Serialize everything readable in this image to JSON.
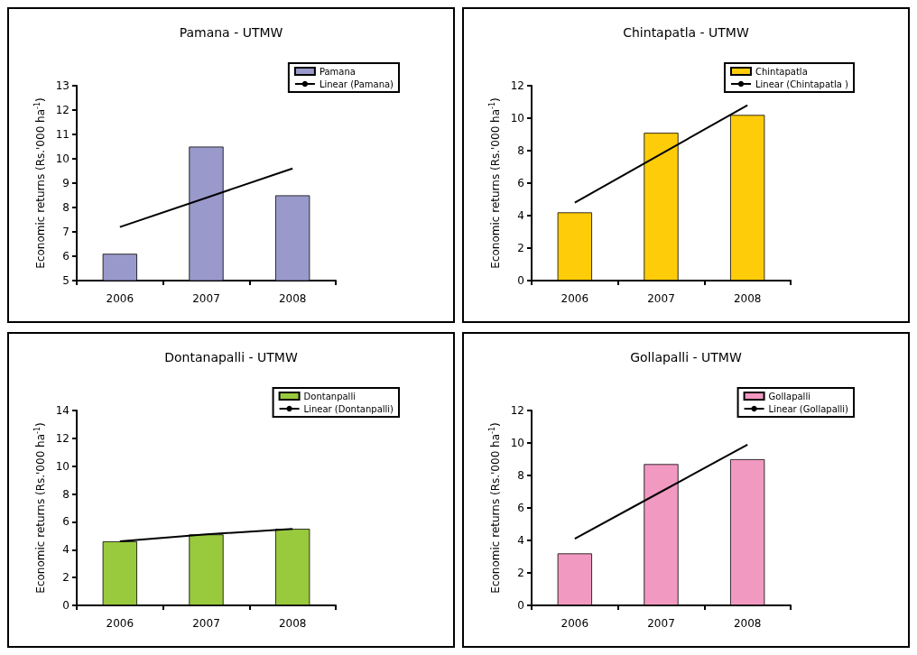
{
  "chart_data": [
    {
      "type": "bar",
      "title": "Pamana - UTMW",
      "ylabel": "Economic returns (Rs.'000 ha$^{-1}$)",
      "categories": [
        "2006",
        "2007",
        "2008"
      ],
      "ylim": [
        5,
        13
      ],
      "yticks": [
        5,
        6,
        7,
        8,
        9,
        10,
        11,
        12,
        13
      ],
      "grid": false,
      "legend": "top right",
      "series": [
        {
          "name": "Pamana",
          "color": "#9999cc",
          "values": [
            6.1,
            10.5,
            8.5
          ]
        },
        {
          "type": "line",
          "name": "Linear (Pamana)",
          "color": "#000000",
          "values": [
            7.2,
            8.4,
            9.6
          ]
        }
      ]
    },
    {
      "type": "bar",
      "title": "Chintapatla - UTMW",
      "ylabel": "Economic returns (Rs.'000 ha$^{-1}$)",
      "categories": [
        "2006",
        "2007",
        "2008"
      ],
      "ylim": [
        0,
        12
      ],
      "yticks": [
        0,
        2,
        4,
        6,
        8,
        10,
        12
      ],
      "grid": false,
      "legend": "top right",
      "series": [
        {
          "name": "Chintapatla",
          "color": "#fecc09",
          "values": [
            4.2,
            9.1,
            10.2
          ]
        },
        {
          "type": "line",
          "name": "Linear (Chintapatla )",
          "color": "#000000",
          "values": [
            4.8,
            7.8,
            10.8
          ]
        }
      ]
    },
    {
      "type": "bar",
      "title": "Dontanapalli - UTMW",
      "ylabel": "Economic returns (Rs.'000 ha$^{-1}$)",
      "categories": [
        "2006",
        "2007",
        "2008"
      ],
      "ylim": [
        0,
        14
      ],
      "yticks": [
        0,
        2,
        4,
        6,
        8,
        10,
        12,
        14
      ],
      "grid": false,
      "legend": "top right",
      "series": [
        {
          "name": "Dontanpalli",
          "color": "#99c93c",
          "values": [
            4.6,
            5.1,
            5.5
          ]
        },
        {
          "type": "line",
          "name": "Linear (Dontanpalli)",
          "color": "#000000",
          "values": [
            4.6,
            5.1,
            5.5
          ]
        }
      ]
    },
    {
      "type": "bar",
      "title": "Gollapalli - UTMW",
      "ylabel": "Economic returns (Rs.'000 ha$^{-1}$)",
      "categories": [
        "2006",
        "2007",
        "2008"
      ],
      "ylim": [
        0,
        12
      ],
      "yticks": [
        0,
        2,
        4,
        6,
        8,
        10,
        12
      ],
      "grid": false,
      "legend": "top right",
      "series": [
        {
          "name": "Gollapalli",
          "color": "#f299c1",
          "values": [
            3.2,
            8.7,
            9.0
          ]
        },
        {
          "type": "line",
          "name": "Linear (Gollapalli)",
          "color": "#000000",
          "values": [
            4.1,
            7.0,
            9.9
          ]
        }
      ]
    }
  ]
}
